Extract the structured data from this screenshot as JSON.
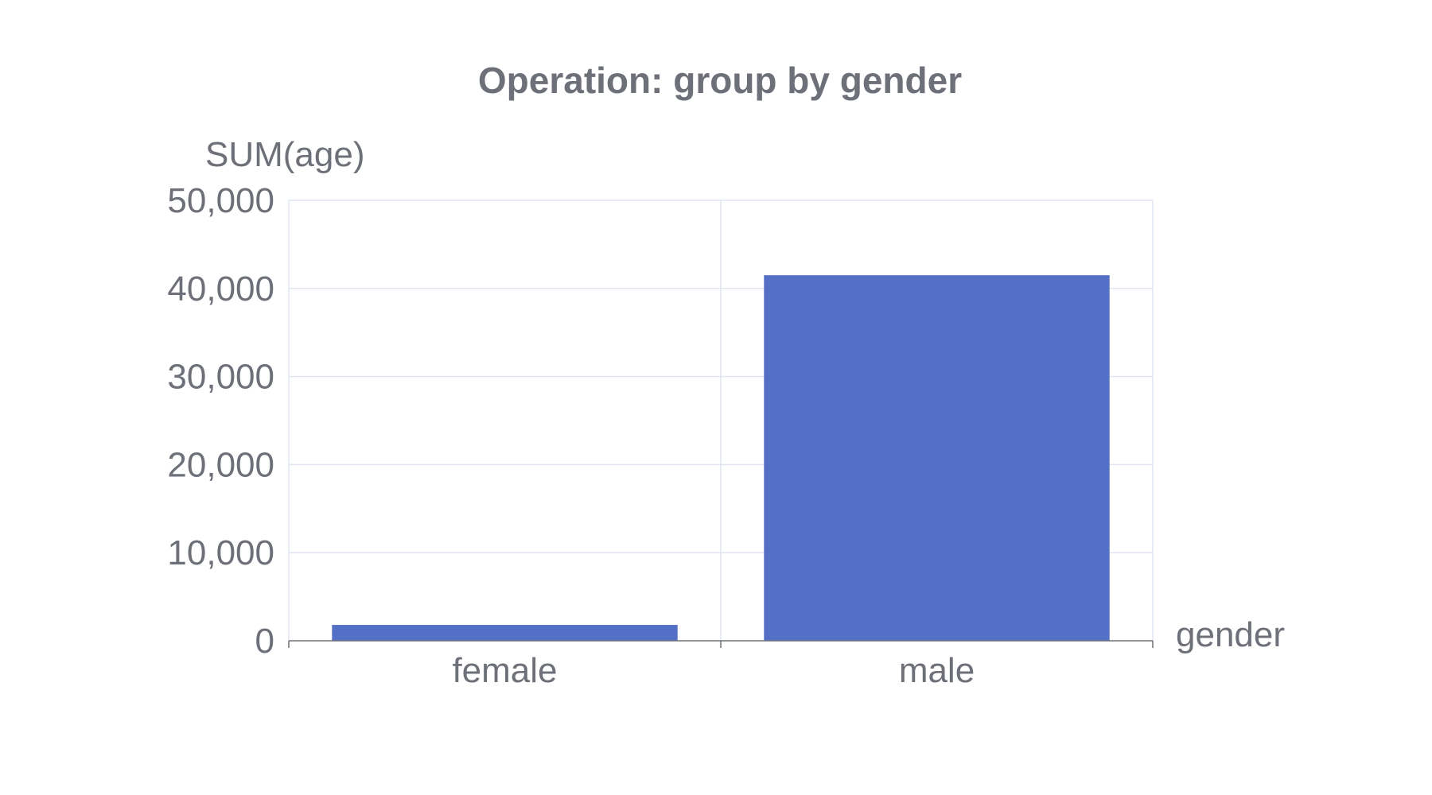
{
  "chart_data": {
    "type": "bar",
    "title": "Operation: group by gender",
    "xlabel": "gender",
    "ylabel": "SUM(age)",
    "categories": [
      "female",
      "male"
    ],
    "values": [
      1800,
      41500
    ],
    "ylim": [
      0,
      50000
    ],
    "yticks": [
      0,
      10000,
      20000,
      30000,
      40000,
      50000
    ],
    "ytick_labels": [
      "0",
      "10,000",
      "20,000",
      "30,000",
      "40,000",
      "50,000"
    ],
    "grid": true,
    "bar_color": "#5470c6"
  }
}
